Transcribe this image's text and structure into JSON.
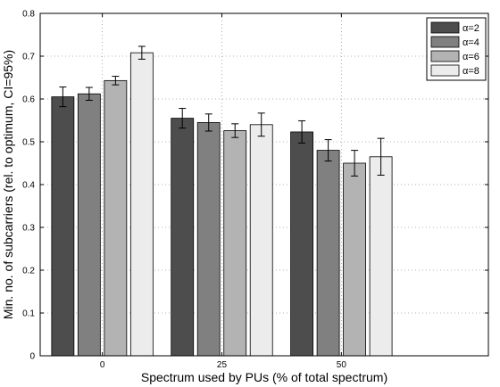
{
  "chart_data": {
    "type": "bar",
    "xlabel": "Spectrum used by PUs (% of total spectrum)",
    "ylabel": "Min. no. of subcarriers (rel. to optimum, CI=95%)",
    "categories": [
      "0",
      "25",
      "50"
    ],
    "ylim": [
      0,
      0.8
    ],
    "yticks": [
      "0",
      "0.1",
      "0.2",
      "0.3",
      "0.4",
      "0.5",
      "0.6",
      "0.7",
      "0.8"
    ],
    "grid": true,
    "legend_position": "top-right",
    "series": [
      {
        "name": "α=2",
        "color": "#4d4d4d",
        "values": [
          0.605,
          0.555,
          0.523
        ],
        "ci": [
          0.023,
          0.023,
          0.026
        ]
      },
      {
        "name": "α=4",
        "color": "#808080",
        "values": [
          0.612,
          0.545,
          0.48
        ],
        "ci": [
          0.015,
          0.02,
          0.025
        ]
      },
      {
        "name": "α=6",
        "color": "#b3b3b3",
        "values": [
          0.643,
          0.526,
          0.45
        ],
        "ci": [
          0.01,
          0.016,
          0.03
        ]
      },
      {
        "name": "α=8",
        "color": "#ececec",
        "values": [
          0.708,
          0.54,
          0.465
        ],
        "ci": [
          0.015,
          0.027,
          0.043
        ]
      }
    ]
  }
}
